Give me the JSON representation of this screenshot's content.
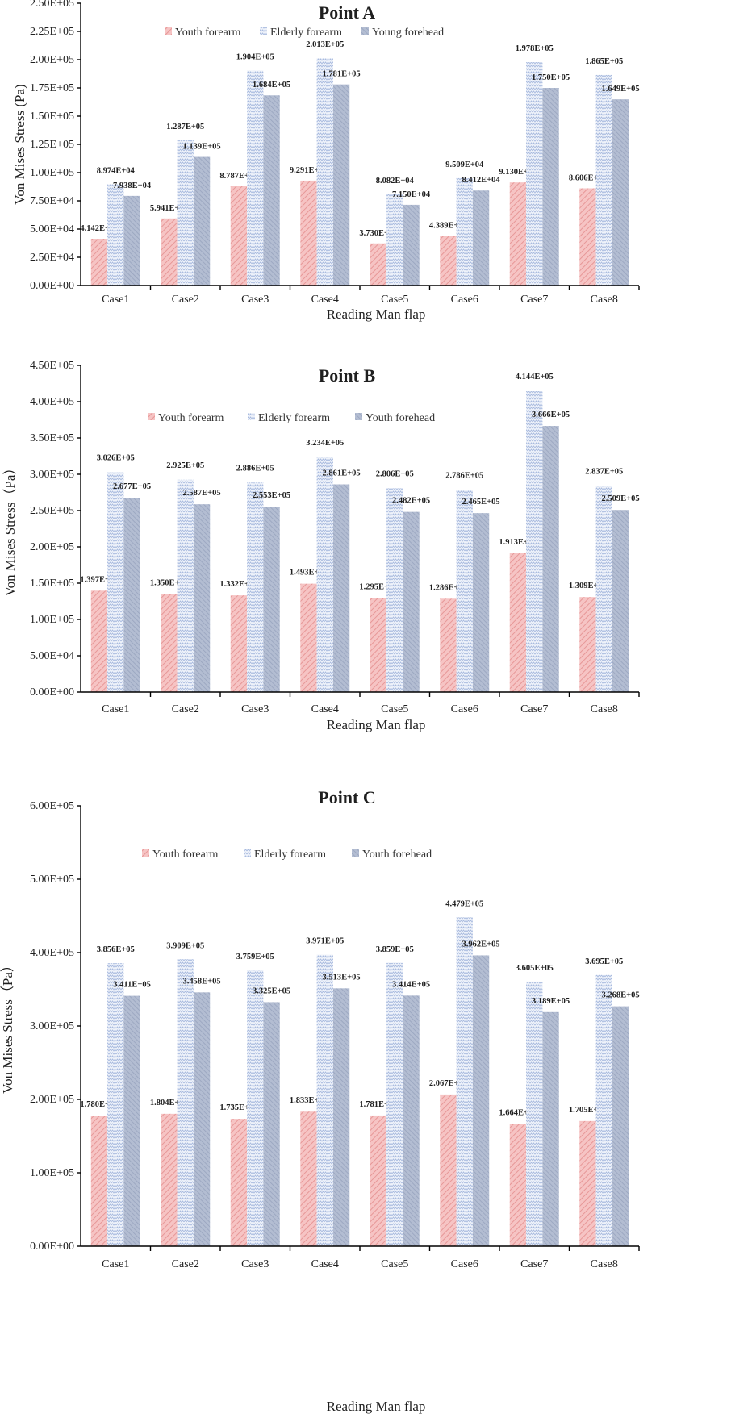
{
  "colors": {
    "youth_forearm": "#f2b3b3",
    "elderly_forearm": "#c9d4ec",
    "forehead": "#a9b4cc"
  },
  "chart_data": [
    {
      "type": "bar",
      "title": "Point A",
      "xlabel": "Reading Man flap",
      "ylabel": "Von Mises Stress (Pa)",
      "ylim": [
        0,
        250000
      ],
      "yticks": [
        "0.00E+00",
        "2.50E+04",
        "5.00E+04",
        "7.50E+04",
        "1.00E+05",
        "1.25E+05",
        "1.50E+05",
        "1.75E+05",
        "2.00E+05",
        "2.25E+05",
        "2.50E+05"
      ],
      "legend_position": "top",
      "categories": [
        "Case1",
        "Case2",
        "Case3",
        "Case4",
        "Case5",
        "Case6",
        "Case7",
        "Case8"
      ],
      "series": [
        {
          "name": "Youth forearm",
          "values": [
            41420,
            59410,
            87870,
            92910,
            37300,
            43890,
            91300,
            86060
          ],
          "labels": [
            "4.142E+04",
            "5.941E+04",
            "8.787E+04",
            "9.291E+04",
            "3.730E+04",
            "4.389E+04",
            "9.130E+04",
            "8.606E+04"
          ]
        },
        {
          "name": "Elderly forearm",
          "values": [
            89740,
            128700,
            190400,
            201300,
            80820,
            95090,
            197800,
            186500
          ],
          "labels": [
            "8.974E+04",
            "1.287E+05",
            "1.904E+05",
            "2.013E+05",
            "8.082E+04",
            "9.509E+04",
            "1.978E+05",
            "1.865E+05"
          ]
        },
        {
          "name": "Young forehead",
          "values": [
            79380,
            113900,
            168400,
            178100,
            71500,
            84120,
            175000,
            164900
          ],
          "labels": [
            "7.938E+04",
            "1.139E+05",
            "1.684E+05",
            "1.781E+05",
            "7.150E+04",
            "8.412E+04",
            "1.750E+05",
            "1.649E+05"
          ]
        }
      ]
    },
    {
      "type": "bar",
      "title": "Point B",
      "xlabel": "Reading Man flap",
      "ylabel": "Von Mises Stress（Pa）",
      "ylim": [
        0,
        450000
      ],
      "yticks": [
        "0.00E+00",
        "5.00E+04",
        "1.00E+05",
        "1.50E+05",
        "2.00E+05",
        "2.50E+05",
        "3.00E+05",
        "3.50E+05",
        "4.00E+05",
        "4.50E+05"
      ],
      "legend_position": "top",
      "categories": [
        "Case1",
        "Case2",
        "Case3",
        "Case4",
        "Case5",
        "Case6",
        "Case7",
        "Case8"
      ],
      "series": [
        {
          "name": "Youth forearm",
          "values": [
            139700,
            135000,
            133200,
            149300,
            129500,
            128600,
            191300,
            130900
          ],
          "labels": [
            "1.397E+05",
            "1.350E+05",
            "1.332E+05",
            "1.493E+05",
            "1.295E+05",
            "1.286E+05",
            "1.913E+05",
            "1.309E+05"
          ]
        },
        {
          "name": "Elderly forearm",
          "values": [
            302600,
            292500,
            288600,
            323400,
            280600,
            278600,
            414400,
            283700
          ],
          "labels": [
            "3.026E+05",
            "2.925E+05",
            "2.886E+05",
            "3.234E+05",
            "2.806E+05",
            "2.786E+05",
            "4.144E+05",
            "2.837E+05"
          ]
        },
        {
          "name": "Youth forehead",
          "values": [
            267700,
            258700,
            255300,
            286100,
            248200,
            246500,
            366600,
            250900
          ],
          "labels": [
            "2.677E+05",
            "2.587E+05",
            "2.553E+05",
            "2.861E+05",
            "2.482E+05",
            "2.465E+05",
            "3.666E+05",
            "2.509E+05"
          ]
        }
      ]
    },
    {
      "type": "bar",
      "title": "Point C",
      "xlabel": "Reading Man flap",
      "ylabel": "Von Mises Stress（Pa）",
      "ylim": [
        0,
        600000
      ],
      "yticks": [
        "0.00E+00",
        "1.00E+05",
        "2.00E+05",
        "3.00E+05",
        "4.00E+05",
        "5.00E+05",
        "6.00E+05"
      ],
      "legend_position": "top",
      "categories": [
        "Case1",
        "Case2",
        "Case3",
        "Case4",
        "Case5",
        "Case6",
        "Case7",
        "Case8"
      ],
      "series": [
        {
          "name": "Youth forearm",
          "values": [
            178000,
            180400,
            173500,
            183300,
            178100,
            206700,
            166400,
            170500
          ],
          "labels": [
            "1.780E+05",
            "1.804E+05",
            "1.735E+05",
            "1.833E+05",
            "1.781E+05",
            "2.067E+05",
            "1.664E+05",
            "1.705E+05"
          ]
        },
        {
          "name": "Elderly forearm",
          "values": [
            385600,
            390900,
            375900,
            397100,
            385900,
            447900,
            360500,
            369500
          ],
          "labels": [
            "3.856E+05",
            "3.909E+05",
            "3.759E+05",
            "3.971E+05",
            "3.859E+05",
            "4.479E+05",
            "3.605E+05",
            "3.695E+05"
          ]
        },
        {
          "name": "Youth forehead",
          "values": [
            341100,
            345800,
            332500,
            351300,
            341400,
            396200,
            318900,
            326800
          ],
          "labels": [
            "3.411E+05",
            "3.458E+05",
            "3.325E+05",
            "3.513E+05",
            "3.414E+05",
            "3.962E+05",
            "3.189E+05",
            "3.268E+05"
          ]
        }
      ]
    }
  ]
}
